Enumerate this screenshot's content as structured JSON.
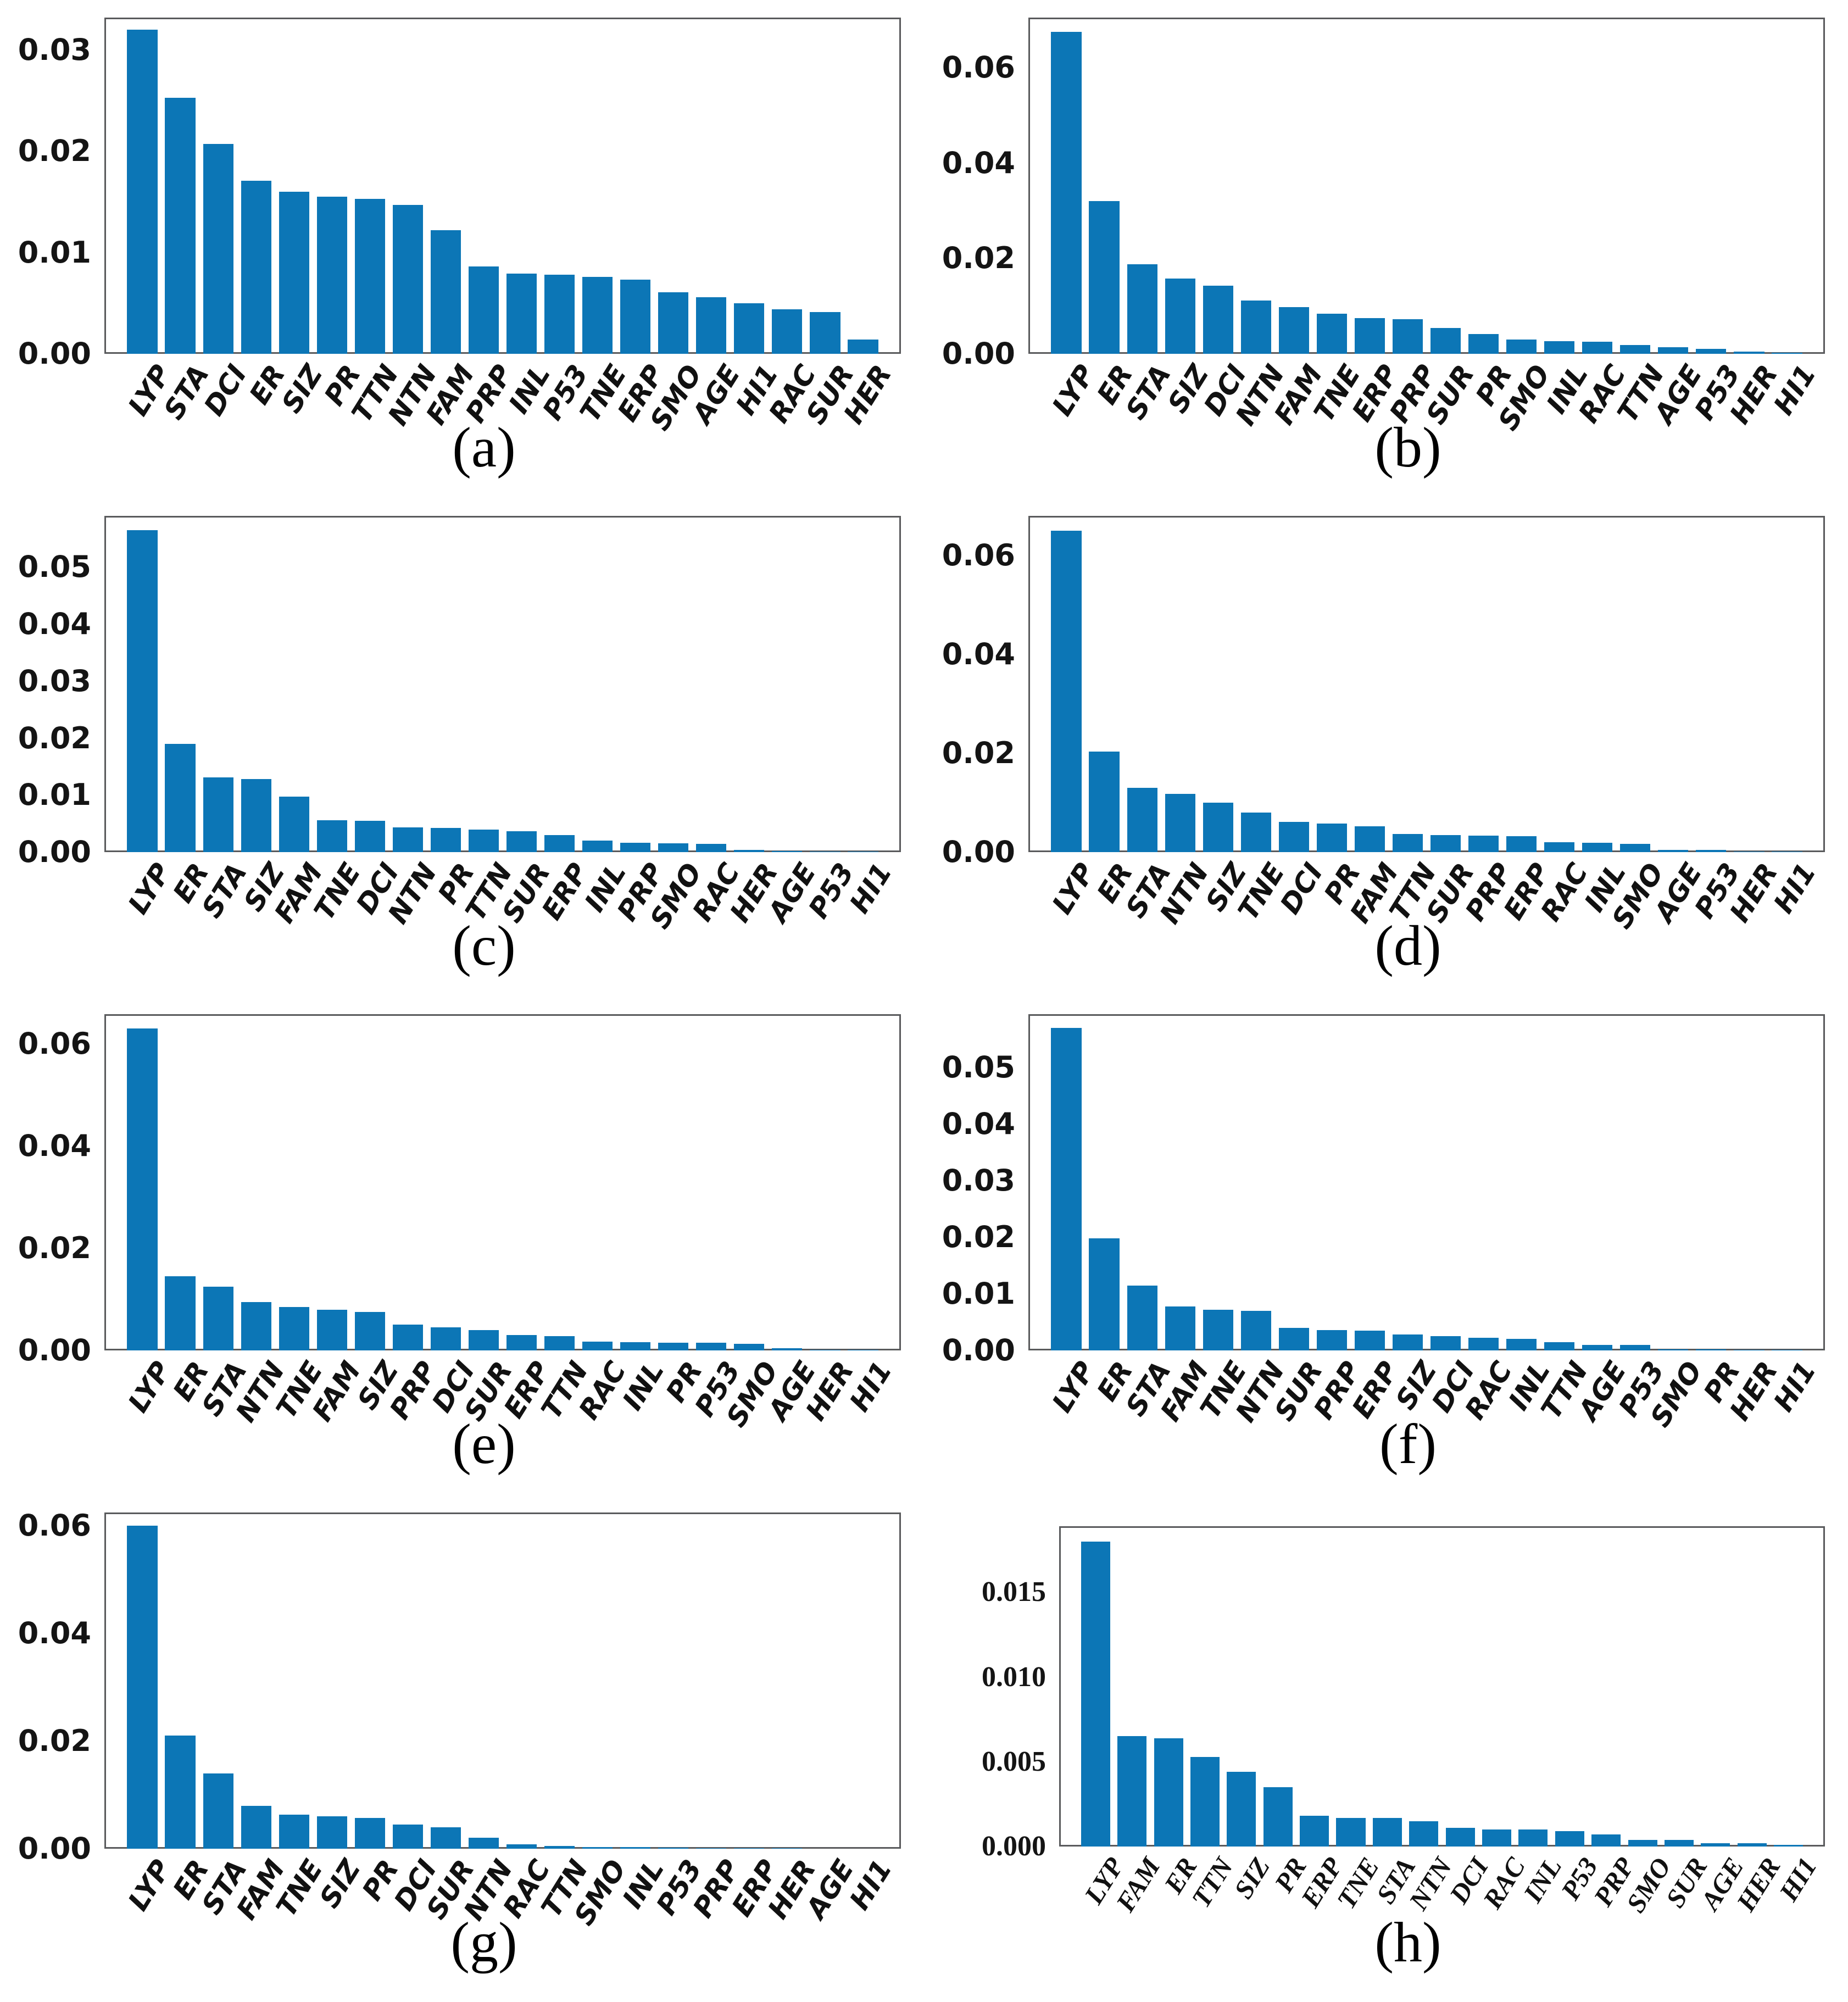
{
  "figure": {
    "background_color": "#ffffff",
    "bar_color": "#0c76b6",
    "box_border_color": "#595a5c",
    "text_color": "#111111"
  },
  "chart_data": [
    {
      "type": "bar",
      "panel_label": "(a)",
      "title": "",
      "xlabel": "",
      "ylabel": "",
      "grid": false,
      "legend": null,
      "categories": [
        "LYP",
        "STA",
        "DCI",
        "ER",
        "SIZ",
        "PR",
        "TTN",
        "NTN",
        "FAM",
        "PRP",
        "INL",
        "P53",
        "TNE",
        "ERP",
        "SMO",
        "AGE",
        "HI1",
        "RAC",
        "SUR",
        "HER"
      ],
      "values": [
        0.032,
        0.0253,
        0.0207,
        0.0171,
        0.016,
        0.0155,
        0.0153,
        0.0147,
        0.0122,
        0.0086,
        0.0079,
        0.0078,
        0.0076,
        0.0073,
        0.0061,
        0.0056,
        0.005,
        0.0044,
        0.0041,
        0.0014
      ],
      "ytick_labels": [
        "0.00",
        "0.01",
        "0.02",
        "0.03"
      ],
      "ylim": [
        0,
        0.0332
      ]
    },
    {
      "type": "bar",
      "panel_label": "(b)",
      "title": "",
      "xlabel": "",
      "ylabel": "",
      "grid": false,
      "legend": null,
      "categories": [
        "LYP",
        "ER",
        "STA",
        "SIZ",
        "DCI",
        "NTN",
        "FAM",
        "TNE",
        "ERP",
        "PRP",
        "SUR",
        "PR",
        "SMO",
        "INL",
        "RAC",
        "TTN",
        "AGE",
        "P53",
        "HER",
        "HI1"
      ],
      "values": [
        0.0675,
        0.032,
        0.0188,
        0.0158,
        0.0143,
        0.0112,
        0.0098,
        0.0084,
        0.0075,
        0.0072,
        0.0054,
        0.0042,
        0.003,
        0.0027,
        0.0025,
        0.0018,
        0.0014,
        0.001,
        0.0005,
        0.0002
      ],
      "ytick_labels": [
        "0.00",
        "0.02",
        "0.04",
        "0.06"
      ],
      "ylim": [
        0,
        0.0705
      ]
    },
    {
      "type": "bar",
      "panel_label": "(c)",
      "title": "",
      "xlabel": "",
      "ylabel": "",
      "grid": false,
      "legend": null,
      "categories": [
        "LYP",
        "ER",
        "STA",
        "SIZ",
        "FAM",
        "TNE",
        "DCI",
        "NTN",
        "PR",
        "TTN",
        "SUR",
        "ERP",
        "INL",
        "PRP",
        "SMO",
        "RAC",
        "HER",
        "AGE",
        "P53",
        "HI1"
      ],
      "values": [
        0.0565,
        0.019,
        0.0131,
        0.0128,
        0.0097,
        0.0056,
        0.0055,
        0.0043,
        0.0042,
        0.004,
        0.0037,
        0.003,
        0.002,
        0.0016,
        0.0015,
        0.0014,
        0.0004,
        0.0002,
        0.0001,
        0.0001
      ],
      "ytick_labels": [
        "0.00",
        "0.01",
        "0.02",
        "0.03",
        "0.04",
        "0.05"
      ],
      "ylim": [
        0,
        0.059
      ]
    },
    {
      "type": "bar",
      "panel_label": "(d)",
      "title": "",
      "xlabel": "",
      "ylabel": "",
      "grid": false,
      "legend": null,
      "categories": [
        "LYP",
        "ER",
        "STA",
        "NTN",
        "SIZ",
        "TNE",
        "DCI",
        "PR",
        "FAM",
        "TTN",
        "SUR",
        "PRP",
        "ERP",
        "RAC",
        "INL",
        "SMO",
        "AGE",
        "P53",
        "HER",
        "HI1"
      ],
      "values": [
        0.065,
        0.0203,
        0.013,
        0.0118,
        0.01,
        0.008,
        0.0061,
        0.0058,
        0.0052,
        0.0037,
        0.0034,
        0.0033,
        0.0032,
        0.002,
        0.0019,
        0.0017,
        0.0004,
        0.0004,
        0.0001,
        0.0001
      ],
      "ytick_labels": [
        "0.00",
        "0.02",
        "0.04",
        "0.06"
      ],
      "ylim": [
        0,
        0.068
      ]
    },
    {
      "type": "bar",
      "panel_label": "(e)",
      "title": "",
      "xlabel": "",
      "ylabel": "",
      "grid": false,
      "legend": null,
      "categories": [
        "LYP",
        "ER",
        "STA",
        "NTN",
        "TNE",
        "FAM",
        "SIZ",
        "PRP",
        "DCI",
        "SUR",
        "ERP",
        "TTN",
        "RAC",
        "INL",
        "PR",
        "P53",
        "SMO",
        "AGE",
        "HER",
        "HI1"
      ],
      "values": [
        0.063,
        0.0145,
        0.0125,
        0.0095,
        0.0085,
        0.008,
        0.0075,
        0.005,
        0.0045,
        0.004,
        0.003,
        0.0028,
        0.0017,
        0.0016,
        0.0015,
        0.0015,
        0.0013,
        0.0004,
        0.0001,
        0.0001
      ],
      "ytick_labels": [
        "0.00",
        "0.02",
        "0.04",
        "0.06"
      ],
      "ylim": [
        0,
        0.0658
      ]
    },
    {
      "type": "bar",
      "panel_label": "(f)",
      "title": "",
      "xlabel": "",
      "ylabel": "",
      "grid": false,
      "legend": null,
      "categories": [
        "LYP",
        "ER",
        "STA",
        "FAM",
        "TNE",
        "NTN",
        "SUR",
        "PRP",
        "ERP",
        "SIZ",
        "DCI",
        "RAC",
        "INL",
        "TTN",
        "AGE",
        "P53",
        "SMO",
        "PR",
        "HER",
        "HI1"
      ],
      "values": [
        0.057,
        0.0198,
        0.0115,
        0.0078,
        0.0072,
        0.007,
        0.004,
        0.0036,
        0.0035,
        0.0028,
        0.0025,
        0.0022,
        0.002,
        0.0015,
        0.001,
        0.001,
        0.0002,
        0.0002,
        0.0001,
        0.0001
      ],
      "ytick_labels": [
        "0.00",
        "0.01",
        "0.02",
        "0.03",
        "0.04",
        "0.05"
      ],
      "ylim": [
        0,
        0.0594
      ]
    },
    {
      "type": "bar",
      "panel_label": "(g)",
      "title": "",
      "xlabel": "",
      "ylabel": "",
      "grid": false,
      "legend": null,
      "categories": [
        "LYP",
        "ER",
        "STA",
        "FAM",
        "TNE",
        "SIZ",
        "PR",
        "DCI",
        "SUR",
        "NTN",
        "RAC",
        "TTN",
        "SMO",
        "INL",
        "P53",
        "PRP",
        "ERP",
        "HER",
        "AGE",
        "HI1"
      ],
      "values": [
        0.06,
        0.021,
        0.014,
        0.008,
        0.0063,
        0.006,
        0.0057,
        0.0045,
        0.004,
        0.002,
        0.0008,
        0.0005,
        0.0003,
        0.0003,
        0.0002,
        0.0001,
        0.0001,
        0.0001,
        0.0,
        0.0
      ],
      "ytick_labels": [
        "0.00",
        "0.02",
        "0.04",
        "0.06"
      ],
      "ylim": [
        0,
        0.0625
      ]
    },
    {
      "type": "bar",
      "panel_label": "(h)",
      "title": "",
      "xlabel": "",
      "ylabel": "",
      "grid": false,
      "legend": null,
      "categories": [
        "LYP",
        "FAM",
        "ER",
        "TTN",
        "SIZ",
        "PR",
        "ERP",
        "TNE",
        "STA",
        "NTN",
        "DCI",
        "RAC",
        "INL",
        "P53",
        "PRP",
        "SMO",
        "SUR",
        "AGE",
        "HER",
        "HI1"
      ],
      "values": [
        0.018,
        0.0065,
        0.0064,
        0.0053,
        0.0044,
        0.0035,
        0.0018,
        0.0017,
        0.0017,
        0.0015,
        0.0011,
        0.001,
        0.001,
        0.0009,
        0.0007,
        0.0004,
        0.0004,
        0.0002,
        0.0002,
        0.0001
      ],
      "ytick_labels": [
        "0.000",
        "0.005",
        "0.010",
        "0.015"
      ],
      "ylim": [
        0,
        0.0189
      ]
    }
  ]
}
